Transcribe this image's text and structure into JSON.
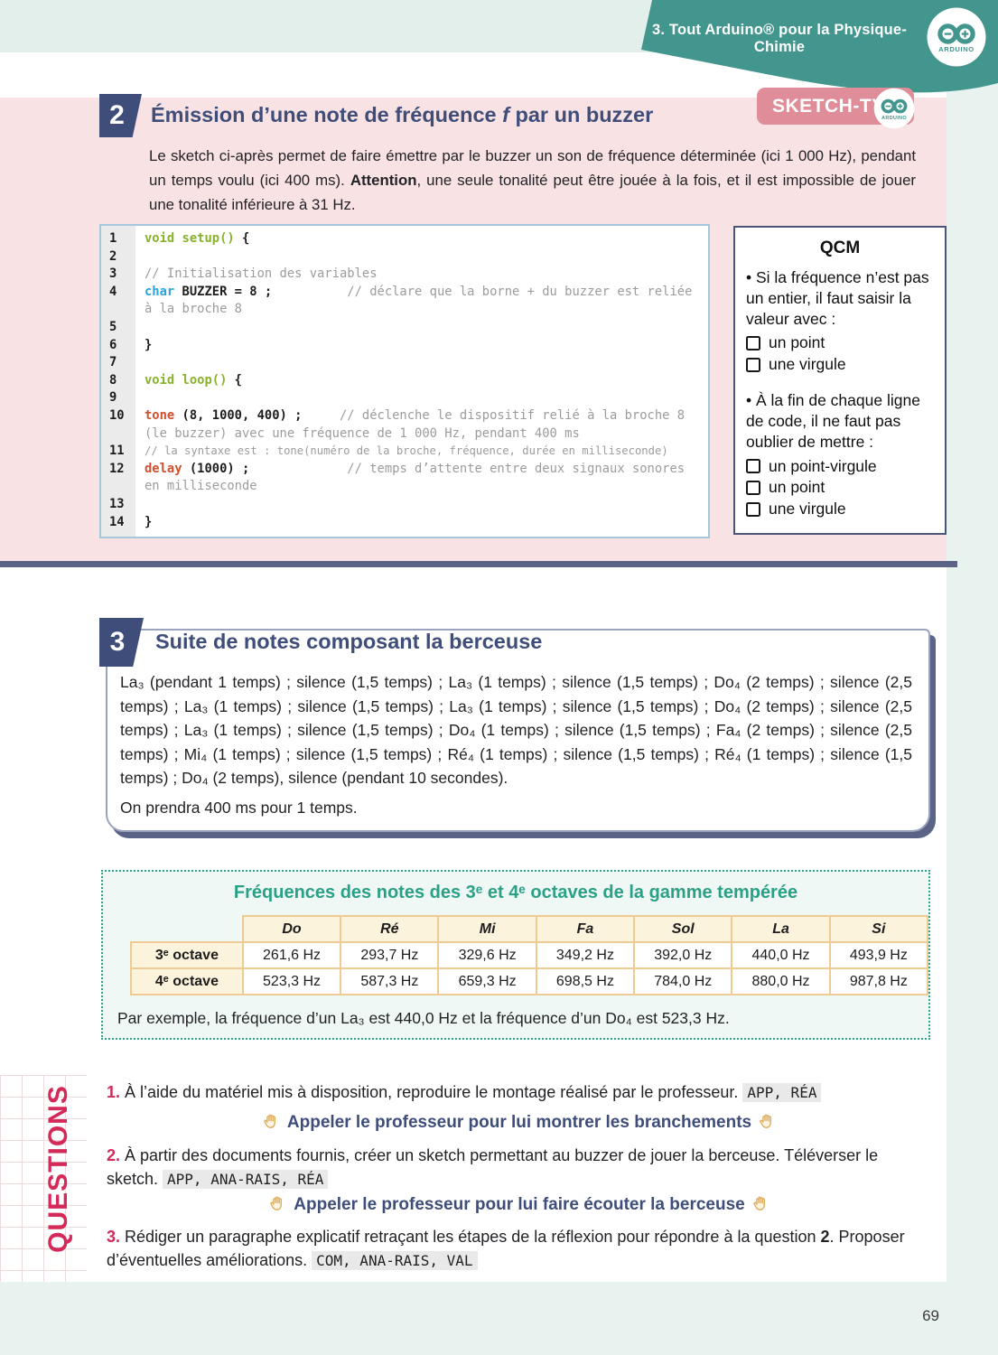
{
  "banner": {
    "title": "3. Tout Arduino® pour la Physique-Chimie",
    "logo_text": "ARDUINO"
  },
  "badge": {
    "label": "SKETCH-TYPE",
    "logo_text": "ARDUINO"
  },
  "section2": {
    "number": "2",
    "title_pre": "Émission d’une note de fréquence ",
    "title_italic": "f",
    "title_post": " par un buzzer",
    "intro_part1": "Le sketch ci-après permet de faire émettre par le buzzer un son de fréquence déterminée (ici 1 000 Hz), pendant un temps voulu (ici 400 ms). ",
    "intro_bold": "Attention",
    "intro_part2": ", une seule tonalité peut être jouée à la fois, et il est impossible de jouer une tonalité inférieure à 31 Hz."
  },
  "code": {
    "lines": [
      {
        "n": "1",
        "s": [
          {
            "c": "g",
            "t": "void setup()"
          },
          {
            "c": "p",
            "t": " {"
          }
        ]
      },
      {
        "n": "2",
        "s": []
      },
      {
        "n": "3",
        "s": [
          {
            "c": "c",
            "t": "// Initialisation des variables"
          }
        ]
      },
      {
        "n": "4",
        "s": [
          {
            "c": "b",
            "t": "char"
          },
          {
            "c": "p",
            "t": " BUZZER = 8 ;"
          },
          {
            "c": "c",
            "t": "          // déclare que la borne + du buzzer est reliée à la broche 8"
          }
        ]
      },
      {
        "n": "5",
        "s": []
      },
      {
        "n": "6",
        "s": [
          {
            "c": "p",
            "t": "}"
          }
        ]
      },
      {
        "n": "7",
        "s": []
      },
      {
        "n": "8",
        "s": [
          {
            "c": "g",
            "t": "void loop()"
          },
          {
            "c": "p",
            "t": " {"
          }
        ]
      },
      {
        "n": "9",
        "s": []
      },
      {
        "n": "10",
        "s": [
          {
            "c": "r",
            "t": "tone"
          },
          {
            "c": "p",
            "t": " (8, 1000, 400) ;"
          },
          {
            "c": "c",
            "t": "     // déclenche le dispositif relié à la broche 8 (le buzzer) avec une fréquence de 1 000 Hz, pendant 400 ms"
          }
        ]
      },
      {
        "n": "11",
        "sm": 1,
        "s": [
          {
            "c": "c",
            "t": "// la syntaxe est : tone(numéro de la broche, fréquence, durée en milliseconde)"
          }
        ]
      },
      {
        "n": "12",
        "s": [
          {
            "c": "r",
            "t": "delay"
          },
          {
            "c": "p",
            "t": " (1000) ;"
          },
          {
            "c": "c",
            "t": "             // temps d’attente entre deux signaux sonores en milliseconde"
          }
        ]
      },
      {
        "n": "13",
        "s": []
      },
      {
        "n": "14",
        "s": [
          {
            "c": "p",
            "t": "}"
          }
        ]
      }
    ]
  },
  "qcm": {
    "title": "QCM",
    "q1": {
      "text": "• Si la fréquence n’est pas un entier, il faut saisir la valeur avec :",
      "options": [
        "un point",
        "une virgule"
      ]
    },
    "q2": {
      "text": "• À la fin de chaque ligne de code, il ne faut pas oublier de mettre :",
      "options": [
        "un point-virgule",
        "un point",
        "une virgule"
      ]
    }
  },
  "section3": {
    "number": "3",
    "title": "Suite de notes composant la berceuse",
    "sequence": "La₃ (pendant 1 temps) ; silence (1,5 temps) ; La₃ (1 temps) ; silence (1,5 temps) ; Do₄ (2 temps) ; silence (2,5 temps) ; La₃ (1 temps) ; silence (1,5 temps) ; La₃ (1 temps) ; silence (1,5 temps) ; Do₄ (2 temps) ; silence (2,5 temps) ; La₃ (1 temps) ; silence (1,5 temps) ; Do₄ (1 temps) ; silence (1,5 temps) ; Fa₄ (2 temps) ; silence (2,5 temps) ; Mi₄ (1 temps) ; silence (1,5 temps) ; Ré₄ (1 temps) ; silence (1,5 temps) ; Ré₄ (1 temps) ; silence (1,5 temps) ; Do₄ (2 temps), silence (pendant 10 secondes).",
    "note": "On prendra 400 ms pour 1 temps."
  },
  "freq_panel": {
    "title": "Fréquences des notes des 3ᵉ et 4ᵉ octaves de la gamme tempérée",
    "columns": [
      "Do",
      "Ré",
      "Mi",
      "Fa",
      "Sol",
      "La",
      "Si"
    ],
    "rows": [
      {
        "label": "3ᵉ octave",
        "values": [
          "261,6 Hz",
          "293,7 Hz",
          "329,6 Hz",
          "349,2 Hz",
          "392,0 Hz",
          "440,0 Hz",
          "493,9 Hz"
        ]
      },
      {
        "label": "4ᵉ octave",
        "values": [
          "523,3 Hz",
          "587,3 Hz",
          "659,3 Hz",
          "698,5 Hz",
          "784,0 Hz",
          "880,0 Hz",
          "987,8 Hz"
        ]
      }
    ],
    "caption": "Par exemple, la fréquence d’un La₃ est 440,0 Hz et la fréquence d’un Do₄ est 523,3 Hz."
  },
  "questions": {
    "label": "QUESTIONS",
    "q1": {
      "num": "1.",
      "text": "À l’aide du matériel mis à disposition, reproduire le montage réalisé par le professeur. ",
      "tag": "APP, RÉA"
    },
    "callout1": "Appeler le professeur pour lui montrer les branchements",
    "q2": {
      "num": "2.",
      "text": "À partir des documents fournis, créer un sketch permettant au buzzer de jouer la berceuse. Téléverser le sketch. ",
      "tag": "APP, ANA-RAIS, RÉA"
    },
    "callout2": "Appeler le professeur pour lui faire écouter la berceuse",
    "q3": {
      "num": "3.",
      "text1": "Rédiger un paragraphe explicatif retraçant les étapes de la réflexion pour répondre à la question ",
      "bold": "2",
      "text2": ". Proposer d’éventuelles améliorations. ",
      "tag": "COM, ANA-RAIS, VAL"
    }
  },
  "page_number": "69"
}
